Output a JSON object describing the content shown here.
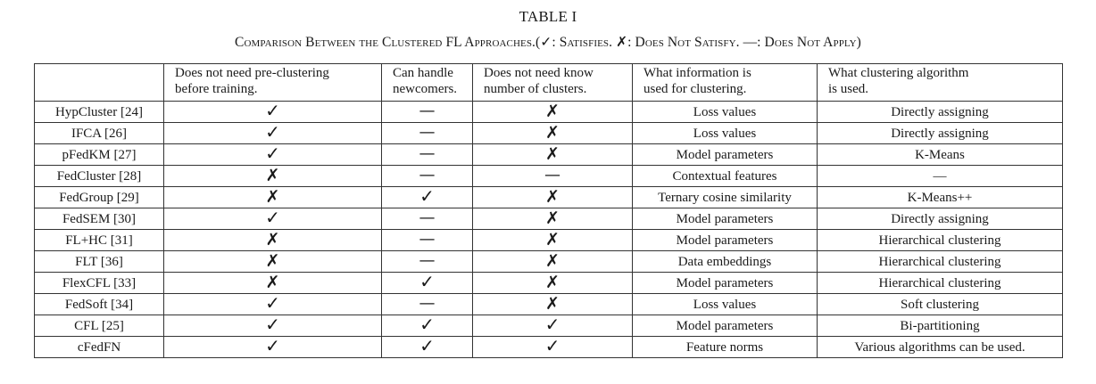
{
  "title": "TABLE I",
  "caption": "Comparison Between the Clustered FL Approaches.(✓: Satisfies. ✗: Does Not Satisfy. —: Does Not Apply)",
  "header": [
    {
      "line1": "",
      "line2": ""
    },
    {
      "line1": "Does not need pre-clustering",
      "line2": "before training."
    },
    {
      "line1": "Can handle",
      "line2": "newcomers."
    },
    {
      "line1": "Does not need know",
      "line2": "number of clusters."
    },
    {
      "line1": "What information is",
      "line2": "used for clustering."
    },
    {
      "line1": "What clustering algorithm",
      "line2": "is used."
    }
  ],
  "rows": [
    {
      "method": "HypCluster [24]",
      "pre": "✓",
      "new": "—",
      "k": "✗",
      "info": "Loss values",
      "algo": "Directly assigning"
    },
    {
      "method": "IFCA [26]",
      "pre": "✓",
      "new": "—",
      "k": "✗",
      "info": "Loss values",
      "algo": "Directly assigning"
    },
    {
      "method": "pFedKM [27]",
      "pre": "✓",
      "new": "—",
      "k": "✗",
      "info": "Model parameters",
      "algo": "K-Means"
    },
    {
      "method": "FedCluster [28]",
      "pre": "✗",
      "new": "—",
      "k": "—",
      "info": "Contextual features",
      "algo": "—"
    },
    {
      "method": "FedGroup [29]",
      "pre": "✗",
      "new": "✓",
      "k": "✗",
      "info": "Ternary cosine similarity",
      "algo": "K-Means++"
    },
    {
      "method": "FedSEM [30]",
      "pre": "✓",
      "new": "—",
      "k": "✗",
      "info": "Model parameters",
      "algo": "Directly assigning"
    },
    {
      "method": "FL+HC [31]",
      "pre": "✗",
      "new": "—",
      "k": "✗",
      "info": "Model parameters",
      "algo": "Hierarchical clustering"
    },
    {
      "method": "FLT [36]",
      "pre": "✗",
      "new": "—",
      "k": "✗",
      "info": "Data embeddings",
      "algo": "Hierarchical clustering"
    },
    {
      "method": "FlexCFL [33]",
      "pre": "✗",
      "new": "✓",
      "k": "✗",
      "info": "Model parameters",
      "algo": "Hierarchical clustering"
    },
    {
      "method": "FedSoft [34]",
      "pre": "✓",
      "new": "—",
      "k": "✗",
      "info": "Loss values",
      "algo": "Soft clustering"
    },
    {
      "method": "CFL [25]",
      "pre": "✓",
      "new": "✓",
      "k": "✓",
      "info": "Model parameters",
      "algo": "Bi-partitioning"
    },
    {
      "method": "cFedFN",
      "pre": "✓",
      "new": "✓",
      "k": "✓",
      "info": "Feature norms",
      "algo": "Various algorithms can be used."
    }
  ]
}
